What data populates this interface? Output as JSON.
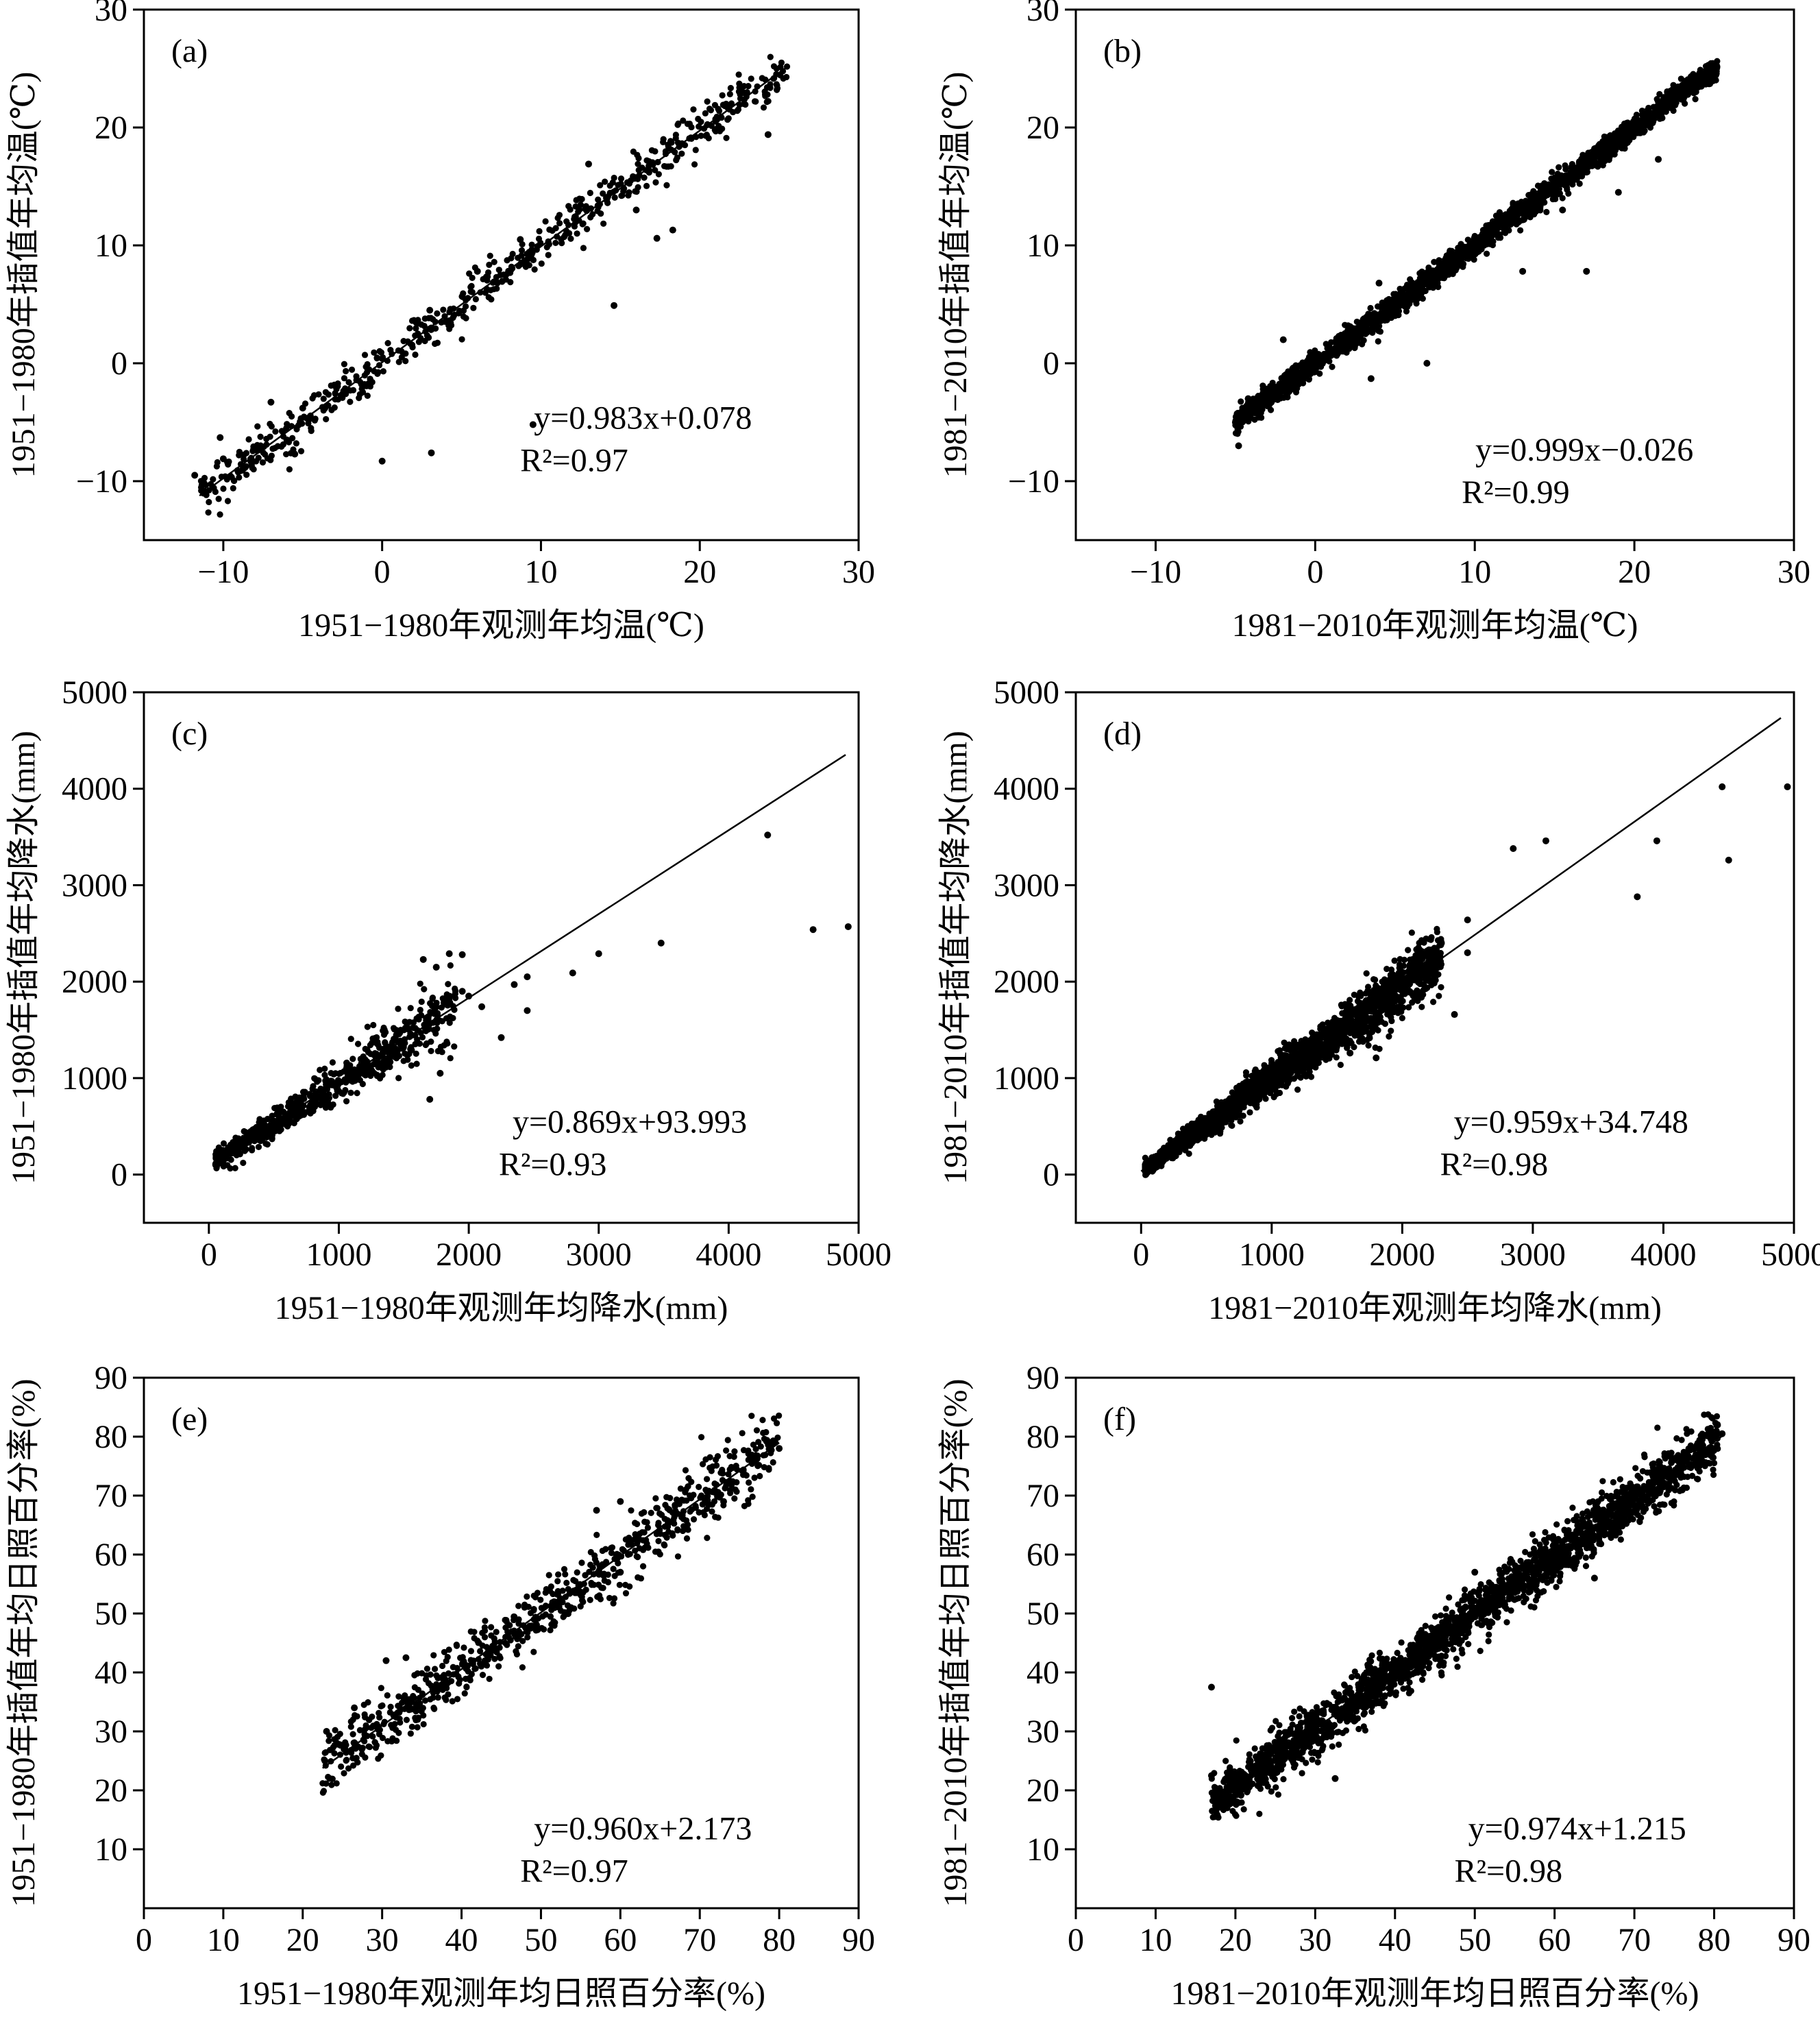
{
  "colors": {
    "ink": "#000000",
    "background": "#ffffff"
  },
  "chart_data": [
    {
      "type": "scatter",
      "panel_label": "(a)",
      "xlabel": "1951−1980年观测年均温(℃)",
      "ylabel": "1951−1980年插值年均温(℃)",
      "xlim": [
        -15,
        30
      ],
      "ylim": [
        -15,
        30
      ],
      "xticks": [
        -10,
        0,
        10,
        20,
        30
      ],
      "yticks": [
        -10,
        0,
        10,
        20,
        30
      ],
      "tick_labels_x": [
        "−10",
        "0",
        "10",
        "20",
        "30"
      ],
      "tick_labels_y": [
        "−10",
        "0",
        "10",
        "20",
        "30"
      ],
      "fit": {
        "slope": 0.983,
        "intercept": 0.078,
        "x_range": [
          -11.5,
          25.5
        ]
      },
      "equation_text": "y=0.983x+0.078",
      "r2_text": "R²=0.97",
      "point_cloud": {
        "x_range": [
          -11.5,
          25.5
        ],
        "approx_count": 600,
        "spread": 0.9
      },
      "points": [
        [
          -11.8,
          -9.5
        ],
        [
          -10.2,
          -6.3
        ],
        [
          -10,
          -8.1
        ],
        [
          -6,
          -6.5
        ],
        [
          -5.5,
          -7.7
        ],
        [
          0,
          -8.3
        ],
        [
          3.1,
          -7.6
        ],
        [
          9.5,
          -5.2
        ],
        [
          14.6,
          4.9
        ],
        [
          17.3,
          10.6
        ],
        [
          18.3,
          11.3
        ],
        [
          24.3,
          19.4
        ],
        [
          13,
          16.9
        ],
        [
          8.7,
          10.5
        ],
        [
          -7,
          -3.3
        ],
        [
          -5,
          -3.8
        ],
        [
          3,
          4.5
        ],
        [
          6,
          7.8
        ],
        [
          16,
          13
        ],
        [
          21,
          20.7
        ]
      ]
    },
    {
      "type": "scatter",
      "panel_label": "(b)",
      "xlabel": "1981−2010年观测年均温(℃)",
      "ylabel": "1981−2010年插值年均温(℃)",
      "xlim": [
        -15,
        30
      ],
      "ylim": [
        -15,
        30
      ],
      "xticks": [
        -10,
        0,
        10,
        20,
        30
      ],
      "yticks": [
        -10,
        0,
        10,
        20,
        30
      ],
      "tick_labels_x": [
        "−10",
        "0",
        "10",
        "20",
        "30"
      ],
      "tick_labels_y": [
        "−10",
        "0",
        "10",
        "20",
        "30"
      ],
      "fit": {
        "slope": 0.999,
        "intercept": -0.026,
        "x_range": [
          -5,
          25.2
        ]
      },
      "equation_text": "y=0.999x−0.026",
      "r2_text": "R²=0.99",
      "point_cloud": {
        "x_range": [
          -5,
          25.2
        ],
        "approx_count": 2200,
        "spread": 0.5
      },
      "points": [
        [
          -4.8,
          -7
        ],
        [
          -5,
          -5
        ],
        [
          3.5,
          -1.3
        ],
        [
          7,
          0
        ],
        [
          6.5,
          6.8
        ],
        [
          17,
          7.8
        ],
        [
          21.5,
          17.3
        ],
        [
          4,
          6.8
        ],
        [
          9,
          9.5
        ],
        [
          13,
          7.8
        ],
        [
          -4.2,
          -3
        ],
        [
          -2,
          2
        ],
        [
          15.5,
          13
        ],
        [
          19,
          14.5
        ]
      ]
    },
    {
      "type": "scatter",
      "panel_label": "(c)",
      "xlabel": "1951−1980年观测年均降水(mm)",
      "ylabel": "1951−1980年插值年均降水(mm)",
      "xlim": [
        -500,
        5000
      ],
      "ylim": [
        -500,
        5000
      ],
      "xticks": [
        0,
        1000,
        2000,
        3000,
        4000,
        5000
      ],
      "yticks": [
        0,
        1000,
        2000,
        3000,
        4000,
        5000
      ],
      "tick_labels_x": [
        "0",
        "1000",
        "2000",
        "3000",
        "4000",
        "5000"
      ],
      "tick_labels_y": [
        "0",
        "1000",
        "2000",
        "3000",
        "4000",
        "5000"
      ],
      "fit": {
        "slope": 0.869,
        "intercept": 93.993,
        "x_range": [
          50,
          4900
        ]
      },
      "equation_text": "y=0.869x+93.993",
      "r2_text": "R²=0.93",
      "point_cloud": {
        "x_range": [
          50,
          1900
        ],
        "approx_count": 700,
        "spread": 90
      },
      "points": [
        [
          4300,
          3520
        ],
        [
          4650,
          2540
        ],
        [
          4920,
          2570
        ],
        [
          3480,
          2400
        ],
        [
          3000,
          2290
        ],
        [
          2800,
          2090
        ],
        [
          2450,
          2050
        ],
        [
          2450,
          1700
        ],
        [
          2250,
          1420
        ],
        [
          1700,
          780
        ],
        [
          1780,
          1050
        ],
        [
          1650,
          2230
        ],
        [
          1850,
          2290
        ],
        [
          1950,
          2280
        ],
        [
          1750,
          2150
        ],
        [
          1950,
          1900
        ],
        [
          2100,
          1740
        ],
        [
          2350,
          1970
        ],
        [
          2000,
          1850
        ],
        [
          1350,
          1500
        ]
      ]
    },
    {
      "type": "scatter",
      "panel_label": "(d)",
      "xlabel": "1981−2010年观测年均降水(mm)",
      "ylabel": "1981−2010年插值年均降水(mm)",
      "xlim": [
        -500,
        5000
      ],
      "ylim": [
        -500,
        5000
      ],
      "xticks": [
        0,
        1000,
        2000,
        3000,
        4000,
        5000
      ],
      "yticks": [
        0,
        1000,
        2000,
        3000,
        4000,
        5000
      ],
      "tick_labels_x": [
        "0",
        "1000",
        "2000",
        "3000",
        "4000",
        "5000"
      ],
      "tick_labels_y": [
        "0",
        "1000",
        "2000",
        "3000",
        "4000",
        "5000"
      ],
      "fit": {
        "slope": 0.959,
        "intercept": 34.748,
        "x_range": [
          0,
          4900
        ]
      },
      "equation_text": "y=0.959x+34.748",
      "r2_text": "R²=0.98",
      "point_cloud": {
        "x_range": [
          30,
          2300
        ],
        "approx_count": 2200,
        "spread": 70
      },
      "points": [
        [
          4450,
          4020
        ],
        [
          4950,
          4020
        ],
        [
          4500,
          3260
        ],
        [
          3800,
          2880
        ],
        [
          3950,
          3460
        ],
        [
          2850,
          3380
        ],
        [
          3100,
          3460
        ],
        [
          2500,
          2640
        ],
        [
          2400,
          1660
        ],
        [
          2300,
          2400
        ],
        [
          2500,
          2300
        ],
        [
          1800,
          1210
        ],
        [
          1600,
          1260
        ],
        [
          2100,
          2120
        ],
        [
          2000,
          1900
        ]
      ]
    },
    {
      "type": "scatter",
      "panel_label": "(e)",
      "xlabel": "1951−1980年观测年均日照百分率(%)",
      "ylabel": "1951−1980年插值年均日照百分率(%)",
      "xlim": [
        0,
        90
      ],
      "ylim": [
        0,
        90
      ],
      "xticks": [
        0,
        10,
        20,
        30,
        40,
        50,
        60,
        70,
        80,
        90
      ],
      "yticks": [
        10,
        20,
        30,
        40,
        50,
        60,
        70,
        80,
        90
      ],
      "tick_labels_x": [
        "0",
        "10",
        "20",
        "30",
        "40",
        "50",
        "60",
        "70",
        "80",
        "90"
      ],
      "tick_labels_y": [
        "10",
        "20",
        "30",
        "40",
        "50",
        "60",
        "70",
        "80",
        "90"
      ],
      "fit": {
        "slope": 0.96,
        "intercept": 2.173,
        "x_range": [
          22.5,
          80
        ]
      },
      "equation_text": "y=0.960x+2.173",
      "r2_text": "R²=0.97",
      "point_cloud": {
        "x_range": [
          22.5,
          80
        ],
        "approx_count": 750,
        "spread": 2.6
      },
      "points": [
        [
          22.8,
          25
        ],
        [
          23,
          30
        ],
        [
          30.5,
          42
        ],
        [
          33,
          42.5
        ],
        [
          26.5,
          34
        ],
        [
          80,
          78
        ],
        [
          79.5,
          79
        ],
        [
          57,
          67.5
        ],
        [
          60,
          69
        ],
        [
          73,
          69
        ],
        [
          60,
          57
        ],
        [
          41,
          39
        ]
      ]
    },
    {
      "type": "scatter",
      "panel_label": "(f)",
      "xlabel": "1981−2010年观测年均日照百分率(%)",
      "ylabel": "1981−2010年插值年均日照百分率(%)",
      "xlim": [
        0,
        90
      ],
      "ylim": [
        0,
        90
      ],
      "xticks": [
        0,
        10,
        20,
        30,
        40,
        50,
        60,
        70,
        80,
        90
      ],
      "yticks": [
        10,
        20,
        30,
        40,
        50,
        60,
        70,
        80,
        90
      ],
      "tick_labels_x": [
        "0",
        "10",
        "20",
        "30",
        "40",
        "50",
        "60",
        "70",
        "80",
        "90"
      ],
      "tick_labels_y": [
        "10",
        "20",
        "30",
        "40",
        "50",
        "60",
        "70",
        "80",
        "90"
      ],
      "fit": {
        "slope": 0.974,
        "intercept": 1.215,
        "x_range": [
          17,
          81
        ]
      },
      "equation_text": "y=0.974x+1.215",
      "r2_text": "R²=0.98",
      "point_cloud": {
        "x_range": [
          17,
          80.5
        ],
        "approx_count": 2200,
        "spread": 2.2
      },
      "points": [
        [
          17,
          37.5
        ],
        [
          17,
          22.5
        ],
        [
          32.5,
          22
        ],
        [
          81,
          80.5
        ],
        [
          76,
          75
        ],
        [
          65,
          56
        ],
        [
          50,
          57
        ]
      ]
    }
  ]
}
